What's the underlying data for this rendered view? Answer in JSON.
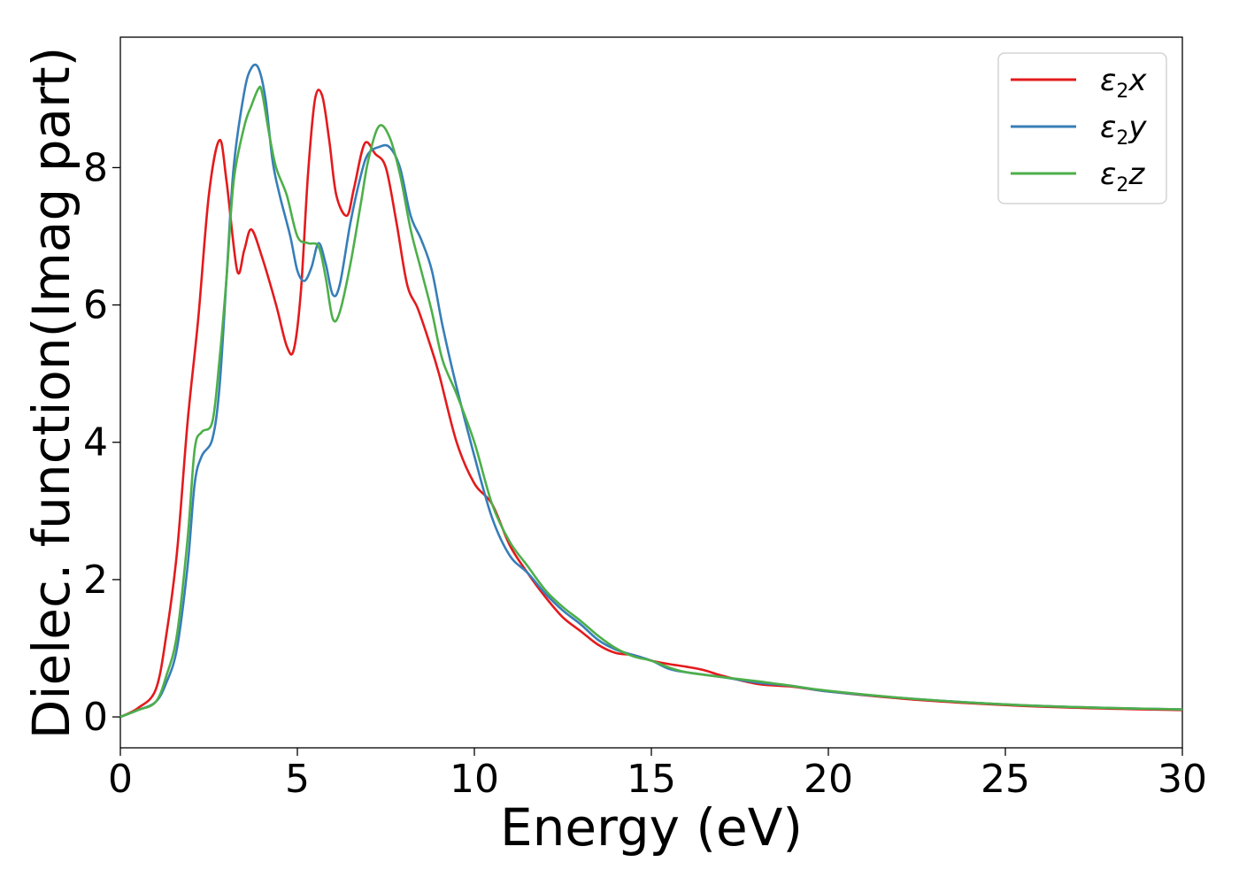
{
  "chart_data": {
    "type": "line",
    "title": "",
    "xlabel": "Energy (eV)",
    "ylabel": "Dielec. function(Imag part)",
    "xlim": [
      0,
      30
    ],
    "ylim": [
      -0.45,
      9.9
    ],
    "xticks": [
      "0",
      "5",
      "10",
      "15",
      "20",
      "25",
      "30"
    ],
    "yticks": [
      "0",
      "2",
      "4",
      "6",
      "8"
    ],
    "grid": false,
    "legend": {
      "position": "top-right"
    },
    "series": [
      {
        "name": "ε2x",
        "label_main": "ε",
        "label_sub": "2",
        "label_tail": "x",
        "color": "#e41a1c",
        "x": [
          0,
          0.5,
          1.0,
          1.3,
          1.6,
          1.9,
          2.2,
          2.5,
          2.8,
          3.0,
          3.3,
          3.5,
          3.7,
          4.0,
          4.4,
          4.7,
          4.9,
          5.1,
          5.3,
          5.5,
          5.7,
          5.9,
          6.1,
          6.4,
          6.6,
          6.9,
          7.2,
          7.5,
          7.8,
          8.1,
          8.4,
          8.7,
          9.0,
          9.5,
          10.0,
          10.5,
          11.0,
          11.5,
          12.0,
          12.5,
          13.0,
          13.5,
          14.0,
          14.5,
          15.0,
          15.5,
          16.0,
          16.5,
          17.0,
          18.0,
          19.0,
          20.0,
          22.0,
          24.0,
          26.0,
          28.0,
          30.0
        ],
        "y": [
          0.0,
          0.13,
          0.4,
          1.2,
          2.4,
          4.3,
          5.8,
          7.6,
          8.4,
          7.8,
          6.5,
          6.8,
          7.1,
          6.7,
          6.0,
          5.4,
          5.35,
          6.2,
          7.9,
          9.0,
          9.05,
          8.4,
          7.6,
          7.3,
          7.7,
          8.35,
          8.2,
          8.0,
          7.2,
          6.3,
          5.95,
          5.5,
          5.0,
          4.0,
          3.4,
          3.1,
          2.5,
          2.1,
          1.75,
          1.45,
          1.25,
          1.05,
          0.93,
          0.9,
          0.82,
          0.77,
          0.73,
          0.68,
          0.6,
          0.48,
          0.44,
          0.37,
          0.27,
          0.2,
          0.15,
          0.12,
          0.1
        ]
      },
      {
        "name": "ε2y",
        "label_main": "ε",
        "label_sub": "2",
        "label_tail": "y",
        "color": "#377eb8",
        "x": [
          0,
          0.5,
          1.0,
          1.3,
          1.6,
          1.9,
          2.1,
          2.3,
          2.6,
          2.8,
          3.0,
          3.2,
          3.5,
          3.7,
          3.9,
          4.1,
          4.3,
          4.5,
          4.8,
          5.0,
          5.2,
          5.4,
          5.6,
          5.8,
          6.0,
          6.2,
          6.5,
          6.8,
          7.0,
          7.3,
          7.6,
          7.9,
          8.2,
          8.5,
          8.8,
          9.1,
          9.5,
          10.0,
          10.5,
          11.0,
          11.5,
          12.0,
          12.5,
          13.0,
          13.5,
          14.0,
          14.5,
          15.0,
          15.5,
          16.0,
          17.0,
          18.0,
          19.0,
          20.0,
          22.0,
          24.0,
          26.0,
          28.0,
          30.0
        ],
        "y": [
          0.0,
          0.1,
          0.22,
          0.5,
          1.0,
          2.2,
          3.4,
          3.8,
          4.05,
          4.8,
          6.4,
          8.0,
          9.1,
          9.45,
          9.45,
          9.0,
          8.1,
          7.6,
          7.0,
          6.5,
          6.35,
          6.55,
          6.9,
          6.6,
          6.15,
          6.3,
          7.2,
          7.9,
          8.2,
          8.3,
          8.3,
          8.0,
          7.3,
          6.95,
          6.5,
          5.7,
          4.8,
          3.8,
          2.9,
          2.35,
          2.1,
          1.8,
          1.55,
          1.35,
          1.12,
          0.98,
          0.9,
          0.82,
          0.7,
          0.65,
          0.58,
          0.5,
          0.45,
          0.37,
          0.28,
          0.21,
          0.16,
          0.13,
          0.11
        ]
      },
      {
        "name": "ε2z",
        "label_main": "ε",
        "label_sub": "2",
        "label_tail": "z",
        "color": "#4daf4a",
        "x": [
          0,
          0.5,
          1.0,
          1.3,
          1.6,
          1.9,
          2.1,
          2.3,
          2.6,
          2.8,
          3.0,
          3.2,
          3.5,
          3.7,
          3.9,
          4.0,
          4.2,
          4.4,
          4.7,
          5.0,
          5.3,
          5.6,
          5.8,
          6.0,
          6.2,
          6.5,
          6.8,
          7.0,
          7.3,
          7.6,
          7.9,
          8.2,
          8.5,
          8.8,
          9.1,
          9.5,
          10.0,
          10.5,
          11.0,
          11.5,
          12.0,
          12.5,
          13.0,
          13.5,
          14.0,
          14.5,
          15.0,
          15.5,
          16.0,
          17.0,
          18.0,
          19.0,
          20.0,
          22.0,
          24.0,
          26.0,
          28.0,
          30.0
        ],
        "y": [
          0.0,
          0.1,
          0.22,
          0.6,
          1.2,
          2.6,
          3.9,
          4.15,
          4.3,
          5.2,
          6.4,
          7.8,
          8.6,
          8.9,
          9.15,
          9.1,
          8.5,
          8.0,
          7.6,
          7.0,
          6.9,
          6.85,
          6.4,
          5.8,
          5.9,
          6.6,
          7.5,
          8.1,
          8.6,
          8.45,
          7.9,
          7.1,
          6.5,
          5.9,
          5.2,
          4.7,
          4.0,
          3.1,
          2.55,
          2.2,
          1.85,
          1.6,
          1.4,
          1.18,
          1.0,
          0.88,
          0.82,
          0.72,
          0.65,
          0.58,
          0.52,
          0.45,
          0.38,
          0.28,
          0.21,
          0.16,
          0.13,
          0.11
        ]
      }
    ]
  }
}
